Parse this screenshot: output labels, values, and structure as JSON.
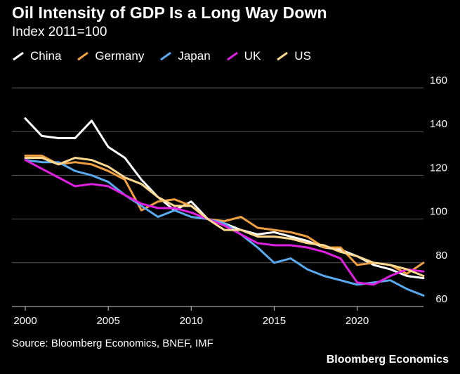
{
  "title": "Oil Intensity of GDP Is a Long Way Down",
  "subtitle": "Index 2011=100",
  "source": "Source: Bloomberg Economics, BNEF, IMF",
  "brand": "Bloomberg Economics",
  "chart_data": {
    "type": "line",
    "title": "Oil Intensity of GDP Is a Long Way Down",
    "subtitle": "Index 2011=100",
    "xlabel": "",
    "ylabel": "",
    "xlim": [
      2000,
      2024
    ],
    "ylim": [
      60,
      160
    ],
    "x_ticks": [
      2000,
      2005,
      2010,
      2015,
      2020
    ],
    "y_ticks": [
      60,
      80,
      100,
      120,
      140,
      160
    ],
    "grid": true,
    "legend_position": "top-left",
    "x": [
      2000,
      2001,
      2002,
      2003,
      2004,
      2005,
      2006,
      2007,
      2008,
      2009,
      2010,
      2011,
      2012,
      2013,
      2014,
      2015,
      2016,
      2017,
      2018,
      2019,
      2020,
      2021,
      2022,
      2023,
      2024
    ],
    "series": [
      {
        "name": "China",
        "color": "#ffffff",
        "values": [
          146,
          138,
          137,
          137,
          145,
          133,
          128,
          118,
          110,
          104,
          108,
          100,
          98,
          95,
          93,
          94,
          92,
          90,
          87,
          86,
          83,
          79,
          77,
          74,
          73
        ]
      },
      {
        "name": "Germany",
        "color": "#f0a040",
        "values": [
          129,
          129,
          125,
          126,
          125,
          122,
          118,
          104,
          108,
          109,
          106,
          100,
          99,
          101,
          96,
          95,
          94,
          92,
          87,
          87,
          79,
          80,
          79,
          75,
          80
        ]
      },
      {
        "name": "Japan",
        "color": "#5aaaf0",
        "values": [
          127,
          126,
          126,
          122,
          120,
          117,
          111,
          106,
          101,
          104,
          101,
          100,
          98,
          93,
          87,
          80,
          82,
          77,
          74,
          72,
          70,
          71,
          72,
          68,
          65
        ]
      },
      {
        "name": "UK",
        "color": "#e020e0",
        "values": [
          127,
          123,
          119,
          115,
          116,
          115,
          111,
          107,
          105,
          105,
          103,
          100,
          97,
          93,
          89,
          88,
          88,
          87,
          85,
          82,
          71,
          70,
          74,
          77,
          76
        ]
      },
      {
        "name": "US",
        "color": "#ffd890",
        "values": [
          128,
          128,
          125,
          128,
          127,
          124,
          119,
          116,
          110,
          106,
          106,
          100,
          95,
          95,
          92,
          92,
          91,
          89,
          88,
          85,
          83,
          80,
          79,
          77,
          74
        ]
      }
    ]
  }
}
